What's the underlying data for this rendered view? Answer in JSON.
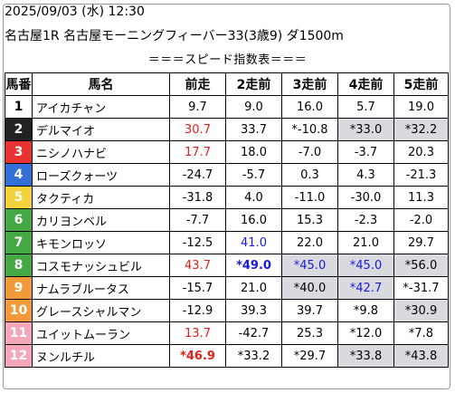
{
  "header": {
    "datetime": "2025/09/03 (水) 12:30",
    "race": "名古屋1R 名古屋モーニングフィーバー33(3歳9) ダ1500m",
    "subtitle": "＝＝＝スピード指数表＝＝＝"
  },
  "columns": [
    "馬番",
    "馬名",
    "前走",
    "2走前",
    "3走前",
    "4走前",
    "5走前"
  ],
  "colors": {
    "gate1": "#ffffff",
    "gate2": "#222222",
    "gate3": "#e83232",
    "gate4": "#3270d8",
    "gate5": "#f3d23a",
    "gate6": "#44a844",
    "gate7": "#f29a3a",
    "gate8": "#f4a7b9",
    "highlight_bg": "#d9dadf",
    "red_text": "#e0201c",
    "blue_text": "#1a1ad6"
  },
  "rows": [
    {
      "num": "1",
      "name": "アイカチャン",
      "vals": [
        "9.7",
        "9.0",
        "16.0",
        "5.7",
        "19.0"
      ]
    },
    {
      "num": "2",
      "name": "デルマイオ",
      "vals": [
        "30.7",
        "33.7",
        "*-10.8",
        "*33.0",
        "*32.2"
      ]
    },
    {
      "num": "3",
      "name": "ニシノハナビ",
      "vals": [
        "17.7",
        "18.0",
        "-7.0",
        "-3.7",
        "20.3"
      ]
    },
    {
      "num": "4",
      "name": "ローズクォーツ",
      "vals": [
        "-24.7",
        "-5.7",
        "0.3",
        "4.3",
        "-21.3"
      ]
    },
    {
      "num": "5",
      "name": "タクティカ",
      "vals": [
        "-31.8",
        "4.0",
        "-11.0",
        "-30.0",
        "11.3"
      ]
    },
    {
      "num": "6",
      "name": "カリヨンベル",
      "vals": [
        "-7.7",
        "16.0",
        "15.3",
        "-2.3",
        "-2.0"
      ]
    },
    {
      "num": "7",
      "name": "キモンロッソ",
      "vals": [
        "-12.5",
        "41.0",
        "22.0",
        "21.0",
        "29.7"
      ]
    },
    {
      "num": "8",
      "name": "コスモナッシュビル",
      "vals": [
        "43.7",
        "*49.0",
        "*45.0",
        "*45.0",
        "*56.0"
      ]
    },
    {
      "num": "9",
      "name": "ナムラブルータス",
      "vals": [
        "-15.7",
        "21.0",
        "*40.0",
        "*42.7",
        "*-31.7"
      ]
    },
    {
      "num": "10",
      "name": "グレースシャルマン",
      "vals": [
        "-12.9",
        "39.3",
        "39.7",
        "*9.8",
        "*30.9"
      ]
    },
    {
      "num": "11",
      "name": "ユイットムーラン",
      "vals": [
        "13.7",
        "-42.7",
        "25.3",
        "*12.0",
        "*7.8"
      ]
    },
    {
      "num": "12",
      "name": "ヌンルチル",
      "vals": [
        "*46.9",
        "*33.2",
        "*29.7",
        "*33.8",
        "*43.8"
      ]
    }
  ]
}
